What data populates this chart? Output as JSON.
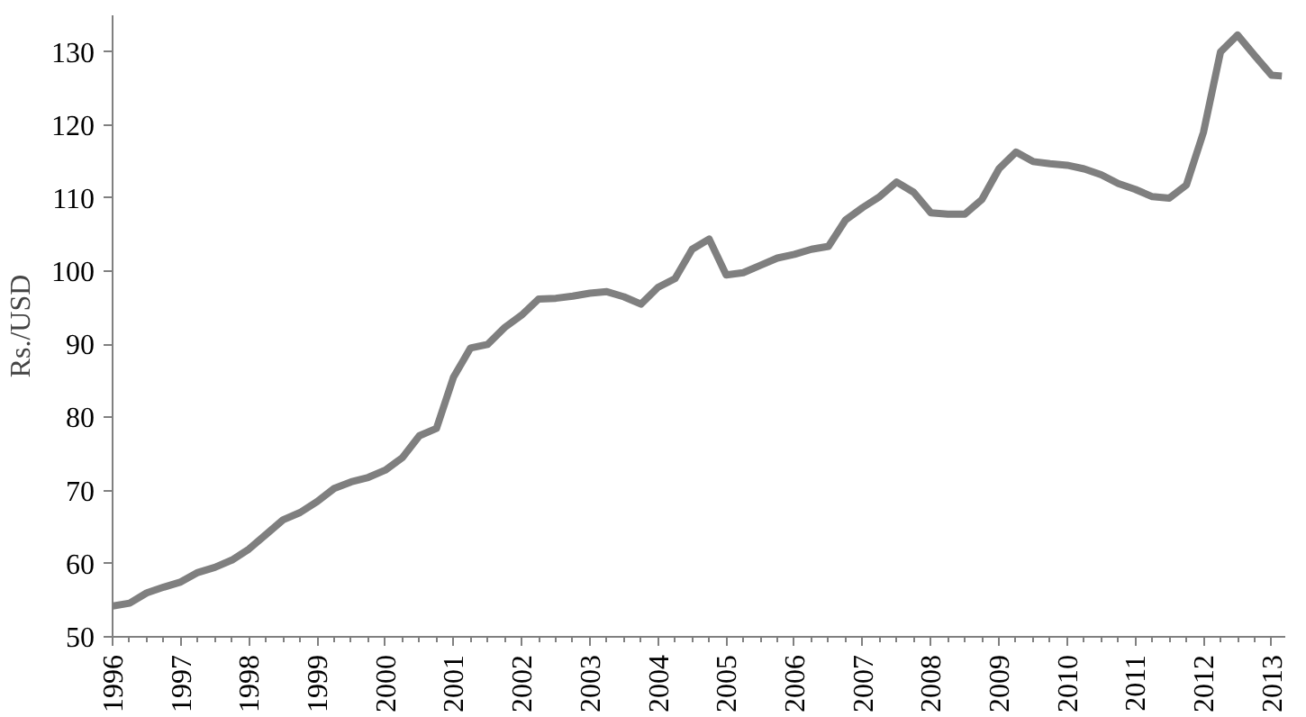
{
  "chart_data": {
    "type": "line",
    "ylabel": "Rs./USD",
    "x": [
      1996,
      1996.25,
      1996.5,
      1996.75,
      1997,
      1997.25,
      1997.5,
      1997.75,
      1998,
      1998.25,
      1998.5,
      1998.75,
      1999,
      1999.25,
      1999.5,
      1999.75,
      2000,
      2000.25,
      2000.5,
      2000.75,
      2001,
      2001.25,
      2001.5,
      2001.75,
      2002,
      2002.25,
      2002.5,
      2002.75,
      2003,
      2003.25,
      2003.5,
      2003.75,
      2004,
      2004.25,
      2004.5,
      2004.75,
      2005,
      2005.25,
      2005.5,
      2005.75,
      2006,
      2006.25,
      2006.5,
      2006.75,
      2007,
      2007.25,
      2007.5,
      2007.75,
      2008,
      2008.25,
      2008.5,
      2008.75,
      2009,
      2009.25,
      2009.5,
      2009.75,
      2010,
      2010.25,
      2010.5,
      2010.75,
      2011,
      2011.25,
      2011.5,
      2011.75,
      2012,
      2012.25,
      2012.5,
      2012.75,
      2013,
      2013.15
    ],
    "series": [
      {
        "color": "#7f7f7f",
        "values": [
          54.2,
          54.6,
          56,
          56.8,
          57.5,
          58.8,
          59.5,
          60.5,
          62,
          64,
          66,
          67,
          68.5,
          70.3,
          71.2,
          71.8,
          72.8,
          74.5,
          77.5,
          78.5,
          85.5,
          89.5,
          90,
          92.3,
          94,
          96.2,
          96.3,
          96.6,
          97,
          97.2,
          96.5,
          95.5,
          97.8,
          99,
          103,
          104.4,
          99.5,
          99.8,
          100.8,
          101.8,
          102.3,
          103,
          103.4,
          107,
          108.7,
          110.2,
          112.2,
          110.8,
          108,
          107.8,
          107.8,
          109.8,
          114,
          116.3,
          115,
          114.7,
          114.5,
          114,
          113.2,
          112,
          111.2,
          110.2,
          110,
          111.8,
          119,
          130,
          132.3,
          129.5,
          126.8,
          126.7
        ]
      }
    ],
    "xlim": [
      1996,
      2013.2
    ],
    "xticks": [
      1996,
      1997,
      1998,
      1999,
      2000,
      2001,
      2002,
      2003,
      2004,
      2005,
      2006,
      2007,
      2008,
      2009,
      2010,
      2011,
      2012,
      2013
    ],
    "ylim": [
      50,
      135
    ],
    "yticks": [
      50,
      60,
      70,
      80,
      90,
      100,
      110,
      120,
      130
    ],
    "grid": false,
    "line_style": "solid"
  }
}
